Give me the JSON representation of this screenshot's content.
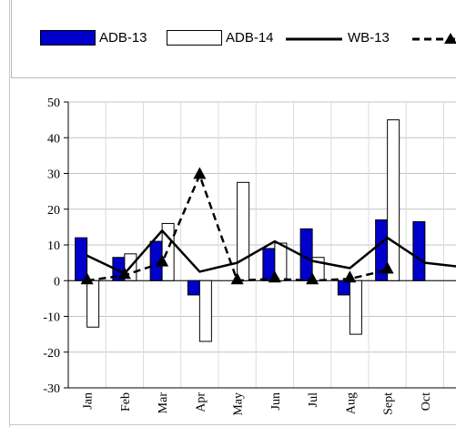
{
  "legend": {
    "items": [
      {
        "label": "ADB-13"
      },
      {
        "label": "ADB-14"
      },
      {
        "label": "WB-13"
      },
      {
        "label": ""
      }
    ]
  },
  "chart_data": {
    "type": "bar",
    "title": "",
    "xlabel": "",
    "ylabel": "",
    "categories": [
      "Jan",
      "Feb",
      "Mar",
      "Apr",
      "May",
      "Jun",
      "Jul",
      "Aug",
      "Sept",
      "Oct"
    ],
    "ylim": [
      -30,
      50
    ],
    "yticks": [
      -30,
      -20,
      -10,
      0,
      10,
      20,
      30,
      40,
      50
    ],
    "grid": true,
    "legend_position": "top",
    "series": [
      {
        "name": "ADB-13",
        "kind": "bar",
        "color": "#0000cc",
        "values": [
          12,
          6.5,
          11,
          -4,
          0,
          9,
          14.5,
          -4,
          17,
          16.5
        ]
      },
      {
        "name": "ADB-14",
        "kind": "bar",
        "color": "#ffffff",
        "values": [
          -13,
          7.5,
          16,
          -17,
          27.5,
          10.5,
          6.5,
          -15,
          45,
          0
        ]
      },
      {
        "name": "WB-13",
        "kind": "line",
        "color": "#000000",
        "values": [
          7,
          2,
          14,
          2.5,
          5,
          11,
          5.5,
          3.5,
          12,
          5
        ]
      },
      {
        "name": "",
        "kind": "dashed-line-triangle",
        "color": "#000000",
        "values": [
          0,
          1.5,
          5,
          29.5,
          0,
          0.5,
          0,
          0.5,
          3,
          null
        ]
      }
    ]
  }
}
